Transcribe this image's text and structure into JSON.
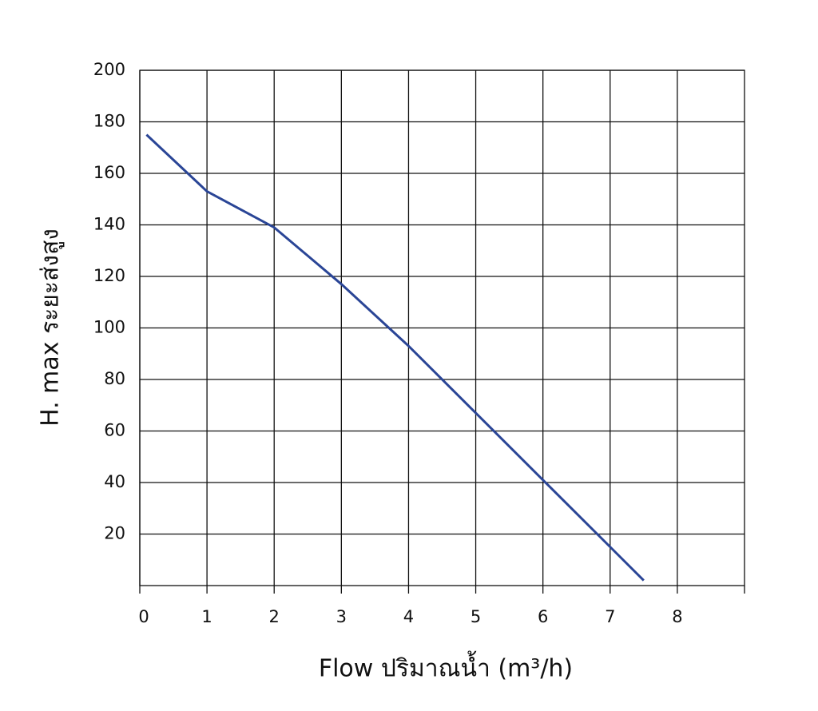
{
  "chart_data": {
    "type": "line",
    "x_label": "Flow  ปริมาณน้ำ (m³/h)",
    "y_label": "H. max  ระยะส่งสูง",
    "x": [
      0.1,
      1,
      2,
      3,
      4,
      5,
      6,
      7,
      7.5
    ],
    "series": [
      {
        "color": "#2a4596",
        "values": [
          175,
          153,
          139,
          117,
          93,
          67,
          41,
          15,
          2
        ]
      }
    ],
    "xlim": [
      0,
      9
    ],
    "xticks": [
      0,
      1,
      2,
      3,
      4,
      5,
      6,
      7,
      8
    ],
    "ylim": [
      0,
      200
    ],
    "yticks": [
      20,
      40,
      60,
      80,
      100,
      120,
      140,
      160,
      180,
      200
    ],
    "grid": true
  }
}
